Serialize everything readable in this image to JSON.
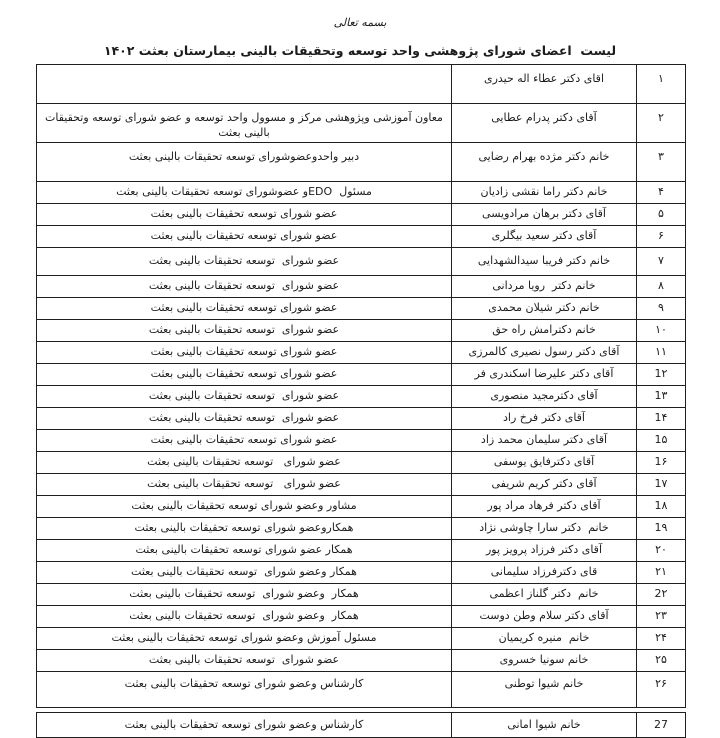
{
  "page": {
    "bismillah": "بسمه تعالی",
    "title": "لیست  اعضای شورای پژوهشی واحد توسعه وتحقیقات بالینی بیمارستان بعثت ۱۴۰۲"
  },
  "table": {
    "rows": [
      {
        "no": "۱",
        "name": "اقای دکتر عطاء اله حیدری",
        "role": ""
      },
      {
        "no": "۲",
        "name": "آقای دکتر پدرام عطایی",
        "role": "معاون آموزشی وپژوهشی مرکز و مسوول واحد توسعه و عضو شورای توسعه وتحقیقات بالینی بعثت"
      },
      {
        "no": "۳",
        "name": "خانم دکتر مژده بهرام رضایی",
        "role": "دبیر واحدوعضوشورای توسعه تحقیقات بالینی بعثت"
      },
      {
        "no": "۴",
        "name": "خانم دکتر راما نقشی زادیان",
        "role": "مسئول  EDOو عضوشورای توسعه تحقیقات بالینی بعثت"
      },
      {
        "no": "۵",
        "name": "آقای دکتر برهان مرادویسی",
        "role": "عضو شورای توسعه تحقیقات بالینی بعثت"
      },
      {
        "no": "۶",
        "name": "آقای دکتر سعید بیگلری",
        "role": "عضو شورای توسعه تحقیقات بالینی بعثت"
      },
      {
        "no": "۷",
        "name": "خانم دکتر فریبا سیدالشهدایی",
        "role": "عضو شورای  توسعه تحقیقات بالینی بعثت"
      },
      {
        "no": "۸",
        "name": "خانم دکتر  رویا مردانی",
        "role": "عضو شورای  توسعه تحقیقات بالینی بعثت"
      },
      {
        "no": "۹",
        "name": "خانم دکتر شیلان محمدی",
        "role": "عضو شورای توسعه تحقیقات بالینی بعثت"
      },
      {
        "no": "۱۰",
        "name": "خانم دکترامش راه حق",
        "role": "عضو شورای  توسعه تحقیقات بالینی بعثت"
      },
      {
        "no": "۱۱",
        "name": "آقای دکتر رسول نصیری کالمرزی",
        "role": "عضو شورای توسعه تحقیقات بالینی بعثت"
      },
      {
        "no": "1۲",
        "name": "آقای دکتر علیرضا اسکندری فر",
        "role": "عضو شورای توسعه تحقیقات بالینی بعثت"
      },
      {
        "no": "1۳",
        "name": "آقای دکترمجید منصوری",
        "role": "عضو شورای  توسعه تحقیقات بالینی بعثت"
      },
      {
        "no": "1۴",
        "name": "آقای دکتر فرخ راد",
        "role": "عضو شورای  توسعه تحقیقات بالینی بعثت"
      },
      {
        "no": "1۵",
        "name": "آقای دکتر سلیمان محمد زاد",
        "role": "عضو شورای توسعه تحقیقات بالینی بعثت"
      },
      {
        "no": "1۶",
        "name": "آقای دکترفایق یوسفی",
        "role": "عضو شورای   توسعه تحقیقات بالینی بعثت"
      },
      {
        "no": "1۷",
        "name": "آقای دکتر کریم شریفی",
        "role": "عضو شورای   توسعه تحقیقات بالینی بعثت"
      },
      {
        "no": "1۸",
        "name": "آقای دکتر فرهاد مراد پور",
        "role": "مشاور وعضو شورای توسعه تحقیقات بالینی بعثت"
      },
      {
        "no": "1۹",
        "name": "خانم  دکتر سارا چاوشی نژاد",
        "role": "همکاروعضو شورای توسعه تحقیقات بالینی بعثت"
      },
      {
        "no": "۲۰",
        "name": "آقای دکتر فرزاد پرویز پور",
        "role": "همکار عضو شورای توسعه تحقیقات بالینی بعثت"
      },
      {
        "no": "۲۱",
        "name": "قای دکترفرزاد سلیمانی",
        "role": "همکار وعضو شورای  توسعه تحقیقات بالینی بعثت"
      },
      {
        "no": "2۲",
        "name": "خانم  دکتر گلناز اعظمی",
        "role": "همکار  وعضو شورای  توسعه تحقیقات بالینی بعثت"
      },
      {
        "no": "۲۳",
        "name": "آقای دکتر سلام وطن دوست",
        "role": "همکار  وعضو شورای  توسعه تحقیقات بالینی بعثت"
      },
      {
        "no": "۲۴",
        "name": "خانم  منیره کریمیان",
        "role": "مسئول آموزش وعضو شورای توسعه تحقیقات بالینی بعثت"
      },
      {
        "no": "۲۵",
        "name": "خانم سونیا خسروی",
        "role": "عضو شورای  توسعه تحقیقات بالینی بعثت"
      },
      {
        "no": "۲۶",
        "name": "خانم شیوا توطنی",
        "role": "کارشناس وعضو شورای توسعه تحقیقات بالینی بعثت"
      },
      {
        "no": "27",
        "name": "خانم شیوا امانی",
        "role": "کارشناس وعضو شورای توسعه تحقیقات بالینی بعثت"
      }
    ]
  }
}
